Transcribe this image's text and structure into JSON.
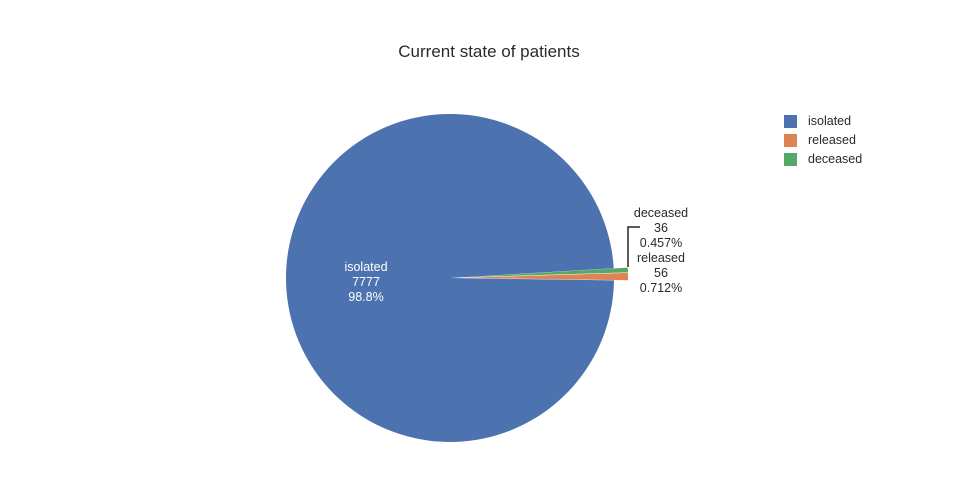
{
  "title": "Current state of patients",
  "chart_data": {
    "type": "pie",
    "title": "Current state of patients",
    "categories": [
      "isolated",
      "released",
      "deceased"
    ],
    "values": [
      7777,
      56,
      36
    ],
    "slices": [
      {
        "label": "isolated",
        "value": "7777",
        "percent": "98.8%",
        "color": "#4c72b0",
        "label_position": "inside"
      },
      {
        "label": "released",
        "value": "56",
        "percent": "0.712%",
        "color": "#dd8452",
        "label_position": "outside"
      },
      {
        "label": "deceased",
        "value": "36",
        "percent": "0.457%",
        "color": "#55a868",
        "label_position": "outside"
      }
    ],
    "legend_position": "right",
    "background": "#ffffff",
    "text_color": "#2a2a2a",
    "leader_line_color": "#262626"
  },
  "legend": {
    "items": [
      {
        "label": "isolated",
        "color": "#4c72b0"
      },
      {
        "label": "released",
        "color": "#dd8452"
      },
      {
        "label": "deceased",
        "color": "#55a868"
      }
    ]
  }
}
